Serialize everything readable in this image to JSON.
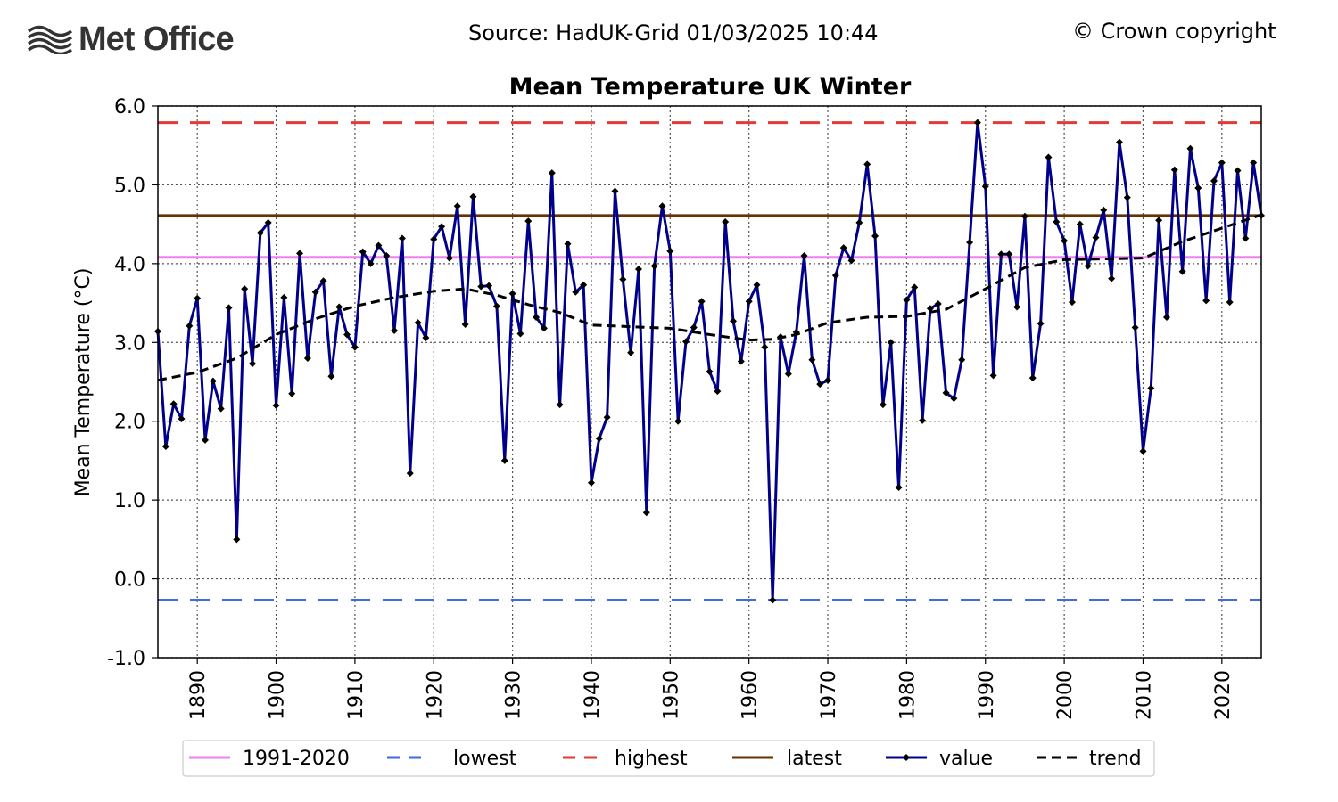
{
  "header": {
    "logo_text": "Met Office",
    "source": "Source: HadUK-Grid 01/03/2025 10:44",
    "copyright": "© Crown copyright"
  },
  "colors": {
    "value": "#00008b",
    "trend": "#000000",
    "baseline": "#ee82ee",
    "lowest": "#4169e1",
    "highest": "#e53935",
    "latest": "#663300"
  },
  "chart_data": {
    "type": "line",
    "title": "Mean Temperature UK Winter",
    "xlabel": "",
    "ylabel": "Mean Temperature (°C)",
    "xlim": [
      1885,
      2025
    ],
    "ylim": [
      -1.0,
      6.0
    ],
    "grid": true,
    "yticks": [
      "-1.0",
      "0.0",
      "1.0",
      "2.0",
      "3.0",
      "4.0",
      "5.0",
      "6.0"
    ],
    "xticks": [
      "1890",
      "1900",
      "1910",
      "1920",
      "1930",
      "1940",
      "1950",
      "1960",
      "1970",
      "1980",
      "1990",
      "2000",
      "2010",
      "2020"
    ],
    "reference_lines": {
      "baseline_1991_2020": 4.08,
      "lowest": -0.27,
      "highest": 5.79,
      "latest": 4.61
    },
    "legend": {
      "placement": "bottom-center",
      "entries": [
        "1991-2020",
        "lowest",
        "highest",
        "latest",
        "value",
        "trend"
      ]
    },
    "series": [
      {
        "name": "value",
        "start_year": 1885,
        "values": [
          3.14,
          1.68,
          2.22,
          2.03,
          3.21,
          3.56,
          1.76,
          2.51,
          2.16,
          3.44,
          0.5,
          3.68,
          2.73,
          4.39,
          4.52,
          2.2,
          3.57,
          2.35,
          4.13,
          2.8,
          3.64,
          3.78,
          2.57,
          3.45,
          3.1,
          2.94,
          4.15,
          4.0,
          4.23,
          4.1,
          3.15,
          4.32,
          1.34,
          3.25,
          3.06,
          4.31,
          4.47,
          4.07,
          4.73,
          3.23,
          4.85,
          3.71,
          3.72,
          3.46,
          1.5,
          3.62,
          3.11,
          4.54,
          3.32,
          3.18,
          5.15,
          2.21,
          4.25,
          3.64,
          3.73,
          1.22,
          1.78,
          2.05,
          4.92,
          3.8,
          2.87,
          3.93,
          0.84,
          3.97,
          4.73,
          4.16,
          2.0,
          3.01,
          3.19,
          3.52,
          2.63,
          2.38,
          4.53,
          3.27,
          2.76,
          3.52,
          3.73,
          2.94,
          -0.27,
          3.07,
          2.6,
          3.13,
          4.1,
          2.78,
          2.47,
          2.52,
          3.85,
          4.2,
          4.04,
          4.52,
          5.26,
          4.35,
          2.21,
          3.0,
          1.16,
          3.54,
          3.7,
          2.01,
          3.43,
          3.49,
          2.36,
          2.29,
          2.78,
          4.27,
          5.79,
          4.98,
          2.58,
          4.12,
          4.12,
          3.45,
          4.6,
          2.55,
          3.24,
          5.35,
          4.53,
          4.29,
          3.51,
          4.5,
          3.97,
          4.33,
          4.68,
          3.81,
          5.54,
          4.84,
          3.19,
          1.62,
          2.42,
          4.55,
          3.32,
          5.19,
          3.9,
          5.46,
          4.96,
          3.53,
          5.05,
          5.28,
          3.51,
          5.18,
          4.32,
          5.28,
          4.61
        ]
      },
      {
        "name": "trend",
        "years": [
          1885,
          1890,
          1895,
          1900,
          1905,
          1910,
          1915,
          1920,
          1924,
          1928,
          1932,
          1936,
          1940,
          1945,
          1950,
          1955,
          1960,
          1963,
          1966,
          1970,
          1975,
          1980,
          1985,
          1990,
          1995,
          2000,
          2005,
          2010,
          2015,
          2020,
          2025
        ],
        "values": [
          2.52,
          2.62,
          2.8,
          3.1,
          3.3,
          3.46,
          3.57,
          3.65,
          3.68,
          3.6,
          3.48,
          3.38,
          3.22,
          3.2,
          3.18,
          3.1,
          3.03,
          3.04,
          3.1,
          3.25,
          3.32,
          3.33,
          3.42,
          3.68,
          3.95,
          4.05,
          4.06,
          4.07,
          4.28,
          4.45,
          4.62
        ]
      }
    ]
  }
}
